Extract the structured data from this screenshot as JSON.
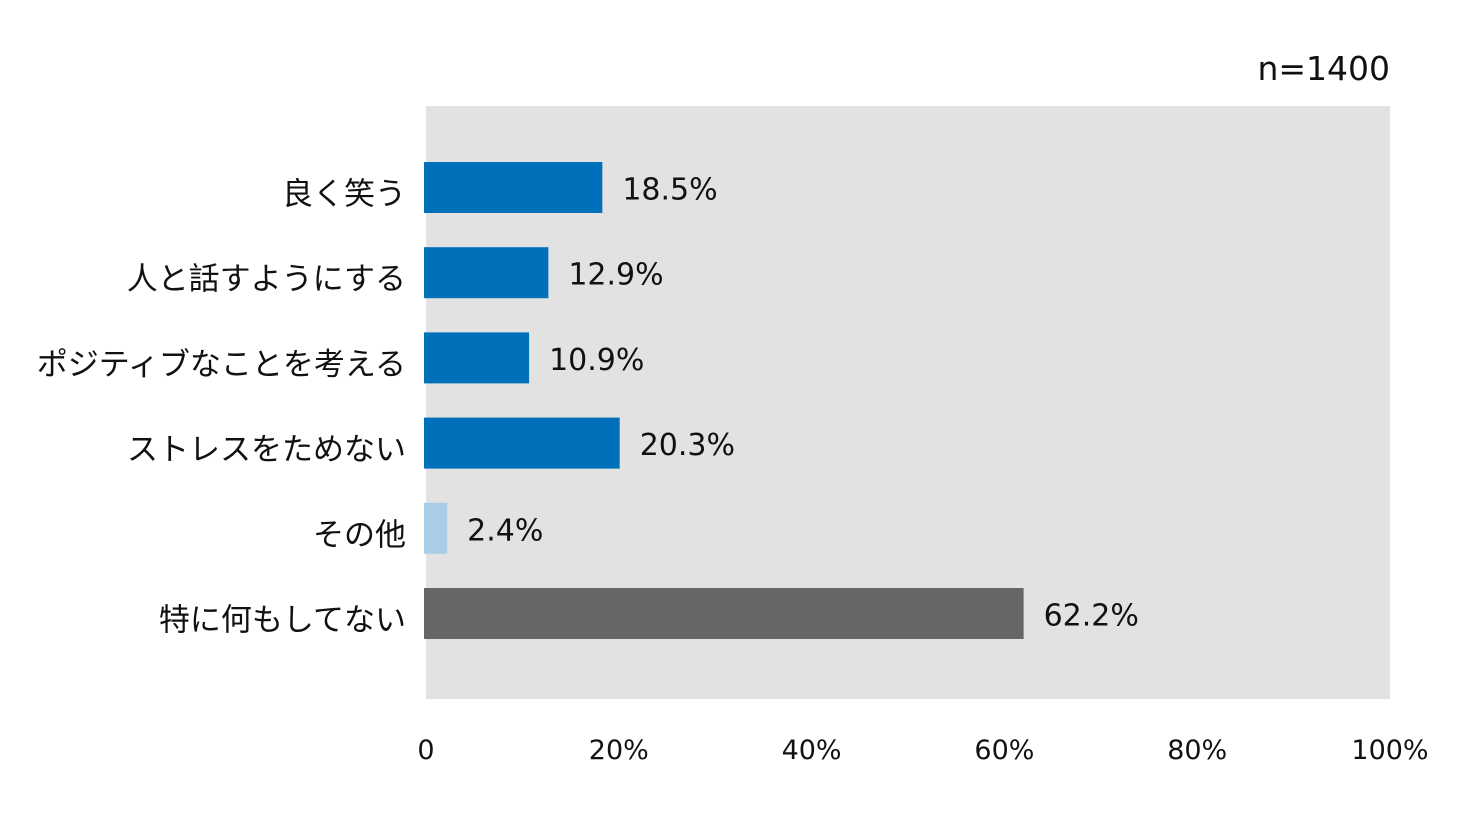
{
  "chart_data": {
    "type": "bar",
    "orientation": "horizontal",
    "sample_size_label": "n=1400",
    "categories": [
      "良く笑う",
      "人と話すようにする",
      "ポジティブなことを考える",
      "ストレスをためない",
      "その他",
      "特に何もしてない"
    ],
    "values": [
      18.5,
      12.9,
      10.9,
      20.3,
      2.4,
      62.2
    ],
    "value_labels": [
      "18.5%",
      "12.9%",
      "10.9%",
      "20.3%",
      "2.4%",
      "62.2%"
    ],
    "bar_colors": [
      "#0070bb",
      "#0070bb",
      "#0070bb",
      "#0070bb",
      "#a9cde6",
      "#666666"
    ],
    "xlim": [
      0,
      100
    ],
    "x_ticks": [
      0,
      20,
      40,
      60,
      80,
      100
    ],
    "x_tick_labels": [
      "0",
      "20%",
      "40%",
      "60%",
      "80%",
      "100%"
    ],
    "plot_background": "#e2e2e2",
    "grid": false,
    "legend": "none",
    "title": "",
    "xlabel": "",
    "ylabel": ""
  }
}
